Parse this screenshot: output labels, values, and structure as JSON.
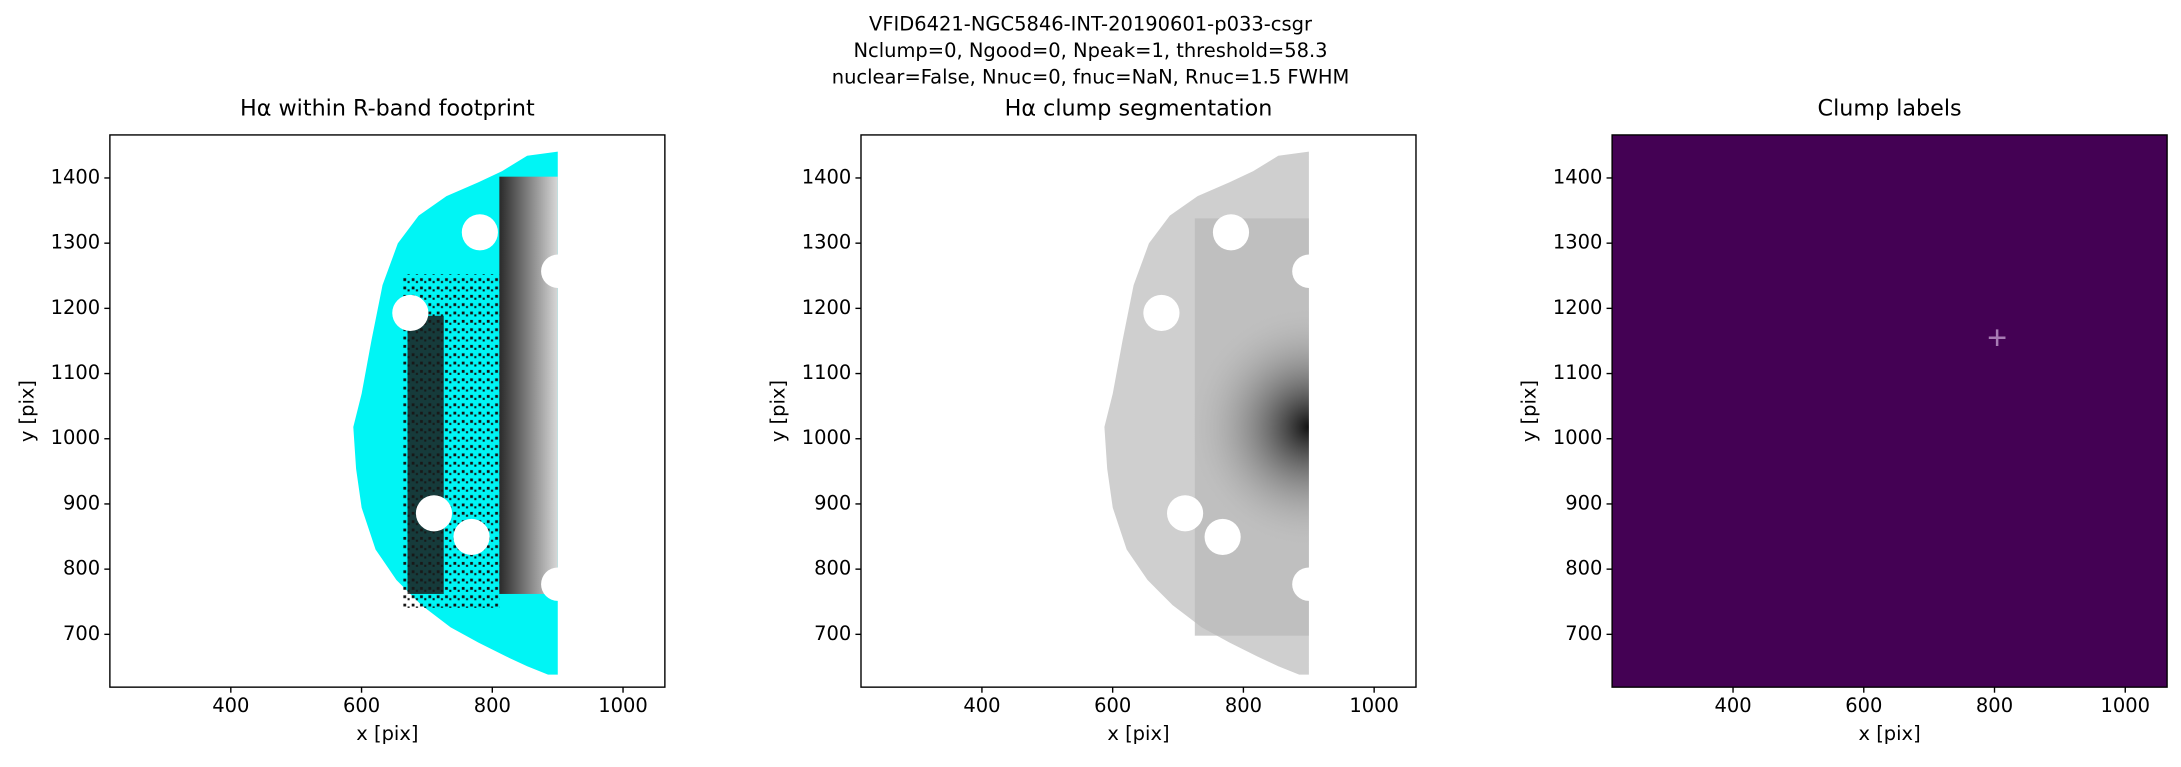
{
  "title": [
    "VFID6421-NGC5846-INT-20190601-p033-csgr",
    "Nclump=0, Ngood=0, Npeak=1, threshold=58.3",
    "nuclear=False, Nnuc=0, fnuc=NaN, Rnuc=1.5 FWHM"
  ],
  "chart_data": [
    {
      "type": "image",
      "title": "Hα within R-band footprint",
      "xlabel": "x [pix]",
      "ylabel": "y [pix]",
      "xlim": [
        215,
        1064
      ],
      "ylim": [
        619,
        1466
      ],
      "xticks": [
        400,
        600,
        800,
        1000
      ],
      "yticks": [
        700,
        800,
        900,
        1000,
        1100,
        1200,
        1300,
        1400
      ]
    },
    {
      "type": "image",
      "title": "Hα clump segmentation",
      "xlabel": "x [pix]",
      "ylabel": "y [pix]",
      "xlim": [
        215,
        1064
      ],
      "ylim": [
        619,
        1466
      ],
      "xticks": [
        400,
        600,
        800,
        1000
      ],
      "yticks": [
        700,
        800,
        900,
        1000,
        1100,
        1200,
        1300,
        1400
      ]
    },
    {
      "type": "image",
      "title": "Clump labels",
      "xlabel": "x [pix]",
      "ylabel": "y [pix]",
      "xlim": [
        215,
        1064
      ],
      "ylim": [
        619,
        1466
      ],
      "xticks": [
        400,
        600,
        800,
        1000
      ],
      "yticks": [
        700,
        800,
        900,
        1000,
        1100,
        1200,
        1300,
        1400
      ],
      "markers": {
        "x": [
          804
        ],
        "y": [
          1155
        ],
        "color": "#a77bb4"
      }
    }
  ]
}
